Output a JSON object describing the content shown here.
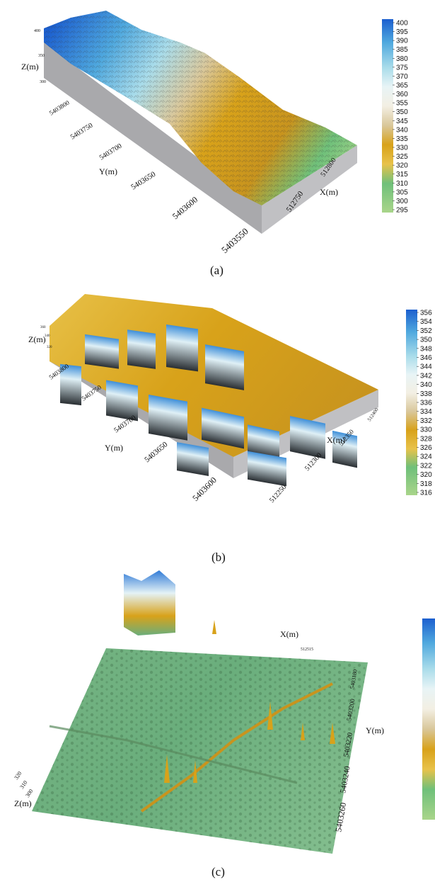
{
  "colors": {
    "scale": [
      "#a9d58a",
      "#6fc07a",
      "#5aa873",
      "#e8c24a",
      "#d8a21a",
      "#c8941e",
      "#d9c79a",
      "#f3efe3",
      "#e8f4f6",
      "#a9dcea",
      "#4fa8de",
      "#1c5fcf"
    ],
    "side_gray": "#a9a9ac"
  },
  "panels": [
    {
      "caption": "(a)",
      "z_label": "Z(m)",
      "y_label": "Y(m)",
      "x_label": "X(m)",
      "z_ticks": [
        "400",
        "350",
        "300"
      ],
      "y_ticks": [
        "5403800",
        "5403750",
        "5403700",
        "5403650",
        "5403600",
        "5403550"
      ],
      "x_ticks": [
        "512750",
        "512800"
      ],
      "colorbar_ticks": [
        "400",
        "395",
        "390",
        "385",
        "380",
        "375",
        "370",
        "365",
        "360",
        "355",
        "350",
        "345",
        "340",
        "335",
        "330",
        "325",
        "320",
        "315",
        "310",
        "305",
        "300",
        "295"
      ]
    },
    {
      "caption": "(b)",
      "z_label": "Z(m)",
      "y_label": "Y(m)",
      "x_label": "X(m)",
      "z_ticks": [
        "360",
        "340",
        "320"
      ],
      "y_ticks": [
        "5403800",
        "5403750",
        "5403700",
        "5403650",
        "5403600"
      ],
      "x_ticks": [
        "512250",
        "512300",
        "512350",
        "512400"
      ],
      "colorbar_ticks": [
        "356",
        "354",
        "352",
        "350",
        "348",
        "346",
        "344",
        "342",
        "340",
        "338",
        "336",
        "334",
        "332",
        "330",
        "328",
        "326",
        "324",
        "322",
        "320",
        "318",
        "316"
      ]
    },
    {
      "caption": "(c)",
      "z_label": "Z(m)",
      "y_label": "Y(m)",
      "x_label": "X(m)",
      "z_ticks": [
        "320",
        "310",
        "300"
      ],
      "y_ticks": [
        "5403180",
        "5403200",
        "5403220",
        "5403240",
        "5403260"
      ],
      "x_ticks": [
        "512515"
      ],
      "colorbar_ticks": []
    }
  ]
}
